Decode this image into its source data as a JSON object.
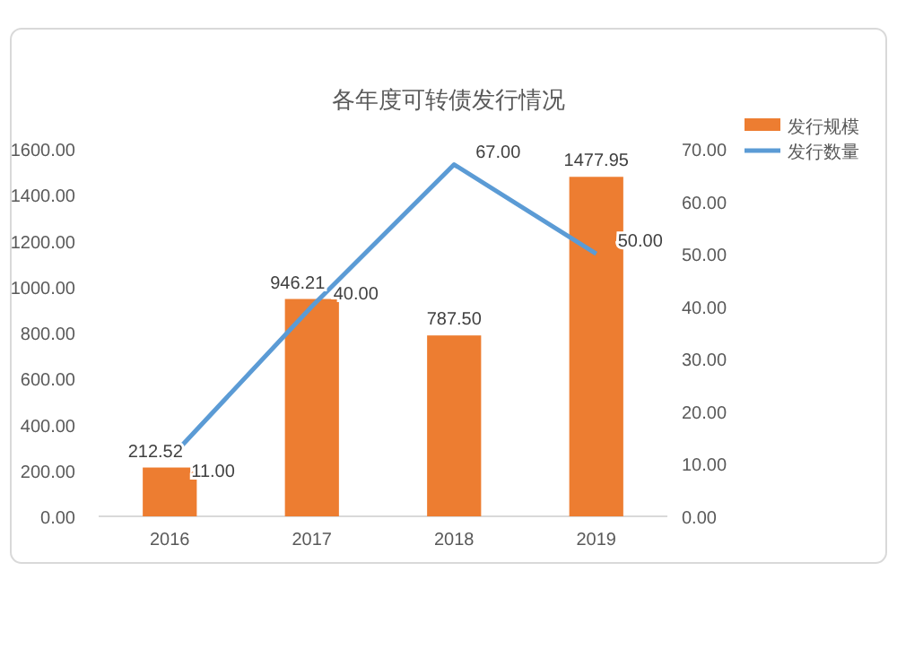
{
  "chart_data": {
    "type": "bar",
    "title": "各年度可转债发行情况",
    "categories": [
      "2016",
      "2017",
      "2018",
      "2019"
    ],
    "series": [
      {
        "name": "发行规模",
        "color": "#ed7d31",
        "values": [
          212.52,
          946.21,
          787.5,
          1477.95
        ],
        "value_labels": [
          "212.52",
          "946.21",
          "787.50",
          "1477.95"
        ]
      },
      {
        "name": "发行数量",
        "type": "line",
        "axis": "y2",
        "color": "#5b9bd5",
        "values": [
          11.0,
          40.0,
          67.0,
          50.0
        ],
        "value_labels": [
          "11.00",
          "40.00",
          "67.00",
          "50.00"
        ]
      }
    ],
    "ylim": [
      0,
      1600
    ],
    "yticks": [
      {
        "value": 0,
        "label": "0.00"
      },
      {
        "value": 200,
        "label": "200.00"
      },
      {
        "value": 400,
        "label": "400.00"
      },
      {
        "value": 600,
        "label": "600.00"
      },
      {
        "value": 800,
        "label": "800.00"
      },
      {
        "value": 1000,
        "label": "1000.00"
      },
      {
        "value": 1200,
        "label": "1200.00"
      },
      {
        "value": 1400,
        "label": "1400.00"
      },
      {
        "value": 1600,
        "label": "1600.00"
      }
    ],
    "y2lim": [
      0,
      70
    ],
    "y2ticks": [
      {
        "value": 0,
        "label": "0.00"
      },
      {
        "value": 10,
        "label": "10.00"
      },
      {
        "value": 20,
        "label": "20.00"
      },
      {
        "value": 30,
        "label": "30.00"
      },
      {
        "value": 40,
        "label": "40.00"
      },
      {
        "value": 50,
        "label": "50.00"
      },
      {
        "value": 60,
        "label": "60.00"
      },
      {
        "value": 70,
        "label": "70.00"
      }
    ],
    "grid": false,
    "legend": "top right"
  }
}
